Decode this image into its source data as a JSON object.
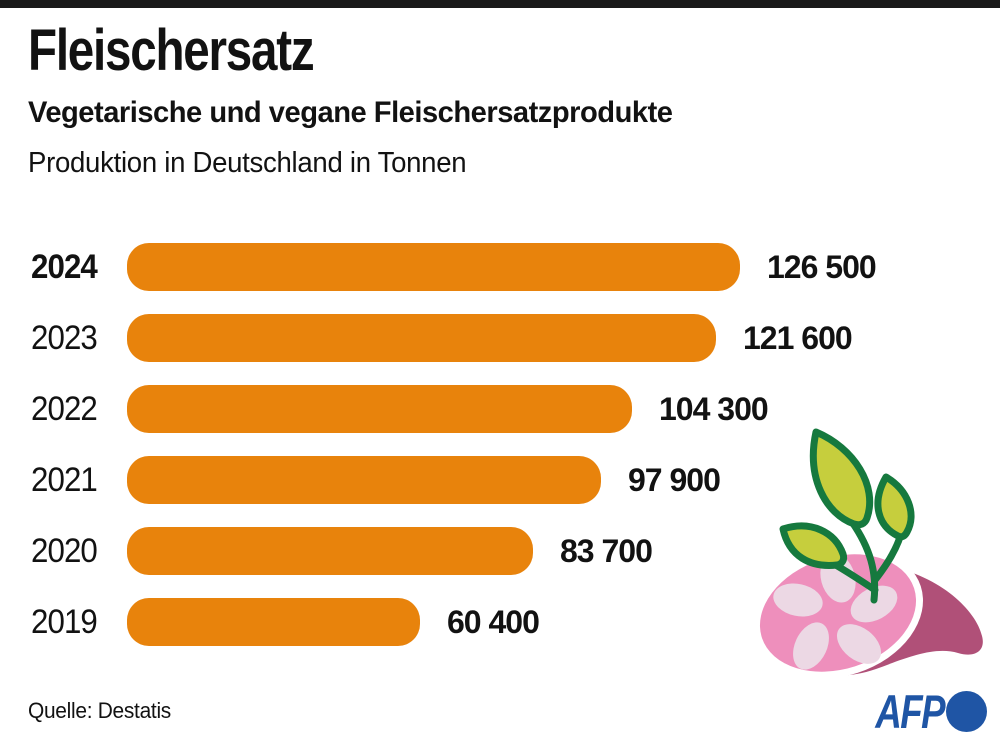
{
  "header": {
    "title": "Fleischersatz",
    "subtitle": "Vegetarische und vegane Fleischersatzprodukte",
    "description": "Produktion in Deutschland in Tonnen"
  },
  "chart_data": {
    "type": "bar",
    "orientation": "horizontal",
    "title": "Fleischersatz",
    "subtitle": "Vegetarische und vegane Fleischersatzprodukte",
    "unit": "Tonnen",
    "categories": [
      "2024",
      "2023",
      "2022",
      "2021",
      "2020",
      "2019"
    ],
    "values": [
      126500,
      121600,
      104300,
      97900,
      83700,
      60400
    ],
    "value_labels": [
      "126 500",
      "121 600",
      "104 300",
      "97 900",
      "83 700",
      "60 400"
    ],
    "highlight_category": "2024",
    "xlim": [
      0,
      126500
    ],
    "grid": false,
    "legend": false
  },
  "footer": {
    "source": "Quelle: Destatis",
    "logo_text": "AFP"
  },
  "colors": {
    "bar": "#E8830C",
    "top_bar": "#1A1A1A",
    "afp_blue": "#1F55A5",
    "leaf_fill": "#C6CE3D",
    "leaf_stroke": "#16793E",
    "ham_dark": "#B05078",
    "ham_face": "#EE8FBC",
    "ham_marbling": "#ECD8E4",
    "ham_rim": "#FFFFFF"
  },
  "illustration": {
    "name": "ham-with-plant-sprout"
  }
}
